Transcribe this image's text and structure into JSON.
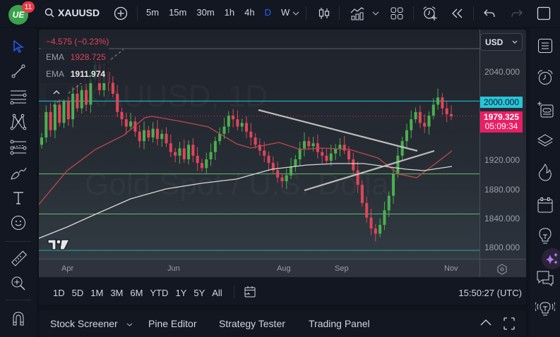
{
  "header": {
    "notification_count": "11",
    "logo_text": "UE",
    "symbol": "XAUUSD",
    "intervals": [
      "5m",
      "15m",
      "30m",
      "1h",
      "4h",
      "D",
      "W"
    ],
    "active_interval": "D"
  },
  "chart": {
    "change_text": "−4.575 (−0.23%)",
    "ema_rows": [
      {
        "label": "EMA",
        "value": "1928.725",
        "color": "#e0455a"
      },
      {
        "label": "EMA",
        "value": "1911.974",
        "color": "#ffffff"
      }
    ],
    "watermark_top": "XAUUSD, 1D",
    "watermark_bottom": "Gold Spot / U.S. Dollar",
    "currency": "USD",
    "price_labels": [
      "2040.000",
      "1920.000",
      "1880.000",
      "1840.000",
      "1800.000"
    ],
    "resistance_tag": "2000.000",
    "current_price": "1979.325",
    "countdown": "05:09:34",
    "time_labels": [
      "Apr",
      "Jun",
      "Aug",
      "Sep",
      "Nov"
    ],
    "colors": {
      "up": "#4caf50",
      "down": "#e0455a",
      "resistance": "#26c6da",
      "support": "#66bb6a",
      "ema_fast": "#c0484f",
      "ema_slow": "#d8d8d8",
      "trendline": "#bdbdbd",
      "price_tag": "#e91e63",
      "accent": "#2962ff"
    }
  },
  "bottom_toolbar": {
    "ranges": [
      "1D",
      "5D",
      "1M",
      "3M",
      "6M",
      "YTD",
      "1Y",
      "5Y",
      "All"
    ],
    "clock": "15:50:27 (UTC)"
  },
  "bottom_panel": {
    "tabs": [
      "Stock Screener",
      "Pine Editor",
      "Strategy Tester",
      "Trading Panel"
    ]
  },
  "chart_data": {
    "type": "candlestick",
    "symbol": "XAUUSD",
    "timeframe": "1D",
    "y_range": [
      1780,
      2070
    ],
    "y_ticks": [
      2040,
      2000,
      1920,
      1880,
      1840,
      1800
    ],
    "x_ticks": [
      "Apr",
      "Jun",
      "Aug",
      "Sep",
      "Nov"
    ],
    "horizontal_lines": [
      {
        "price": 2000,
        "color": "#26c6da",
        "label": "resistance"
      },
      {
        "price": 1900,
        "color": "#66bb6a",
        "label": "support"
      },
      {
        "price": 1845,
        "color": "#66bb6a",
        "label": "support"
      },
      {
        "price": 1795,
        "color": "#26a69a",
        "label": "bottom"
      }
    ],
    "indicators": [
      {
        "name": "EMA",
        "value": 1928.725,
        "color": "#e0455a"
      },
      {
        "name": "EMA",
        "value": 1911.974,
        "color": "#ffffff"
      }
    ],
    "last_price": 1979.325,
    "change": -4.575,
    "change_pct": -0.23
  }
}
